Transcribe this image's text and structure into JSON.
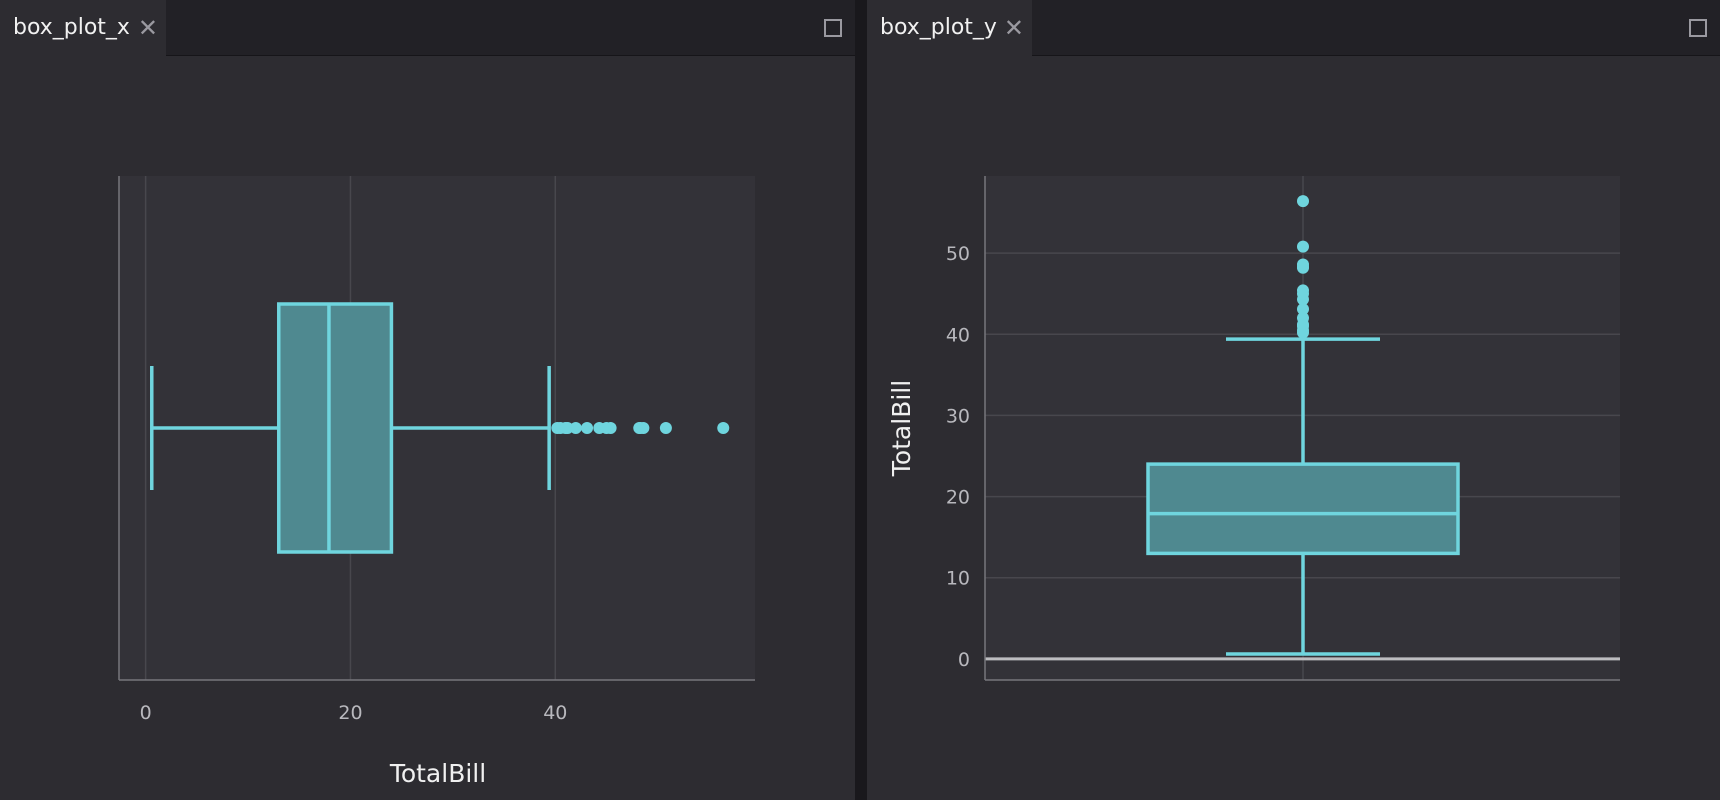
{
  "colors": {
    "accent": "#6fd5de",
    "box_fill": "#4f8990",
    "plot_bg": "#333238",
    "panel_bg": "#2d2c31"
  },
  "icons": {
    "close": "close-icon",
    "maximize": "maximize-icon"
  },
  "tabs": {
    "left": {
      "title": "box_plot_x",
      "close": "✕"
    },
    "right": {
      "title": "box_plot_y",
      "close": "✕"
    }
  },
  "chart_data": [
    {
      "type": "box",
      "orientation": "horizontal",
      "xlabel": "TotalBill",
      "ylabel": "",
      "xlim": [
        -2.6,
        59.5
      ],
      "xticks": [
        0,
        20,
        40
      ],
      "grid": true,
      "stats": {
        "min": 0.6,
        "q1": 13.0,
        "median": 17.9,
        "q3": 24.0,
        "max": 39.4
      },
      "outliers": [
        40.2,
        40.5,
        41.0,
        41.2,
        42.0,
        43.1,
        44.3,
        45.0,
        45.4,
        48.2,
        48.3,
        48.6,
        50.8,
        56.4
      ]
    },
    {
      "type": "box",
      "orientation": "vertical",
      "xlabel": "",
      "ylabel": "TotalBill",
      "ylim": [
        -2.6,
        59.5
      ],
      "yticks": [
        0,
        10,
        20,
        30,
        40,
        50
      ],
      "grid": true,
      "stats": {
        "min": 0.6,
        "q1": 13.0,
        "median": 17.9,
        "q3": 24.0,
        "max": 39.4
      },
      "outliers": [
        40.2,
        40.5,
        41.0,
        41.2,
        42.0,
        43.1,
        44.3,
        45.0,
        45.4,
        48.2,
        48.3,
        48.6,
        50.8,
        56.4
      ]
    }
  ]
}
